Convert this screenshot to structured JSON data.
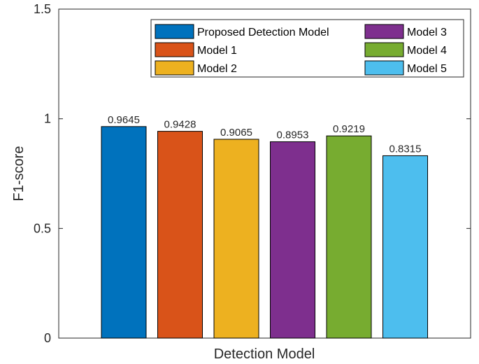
{
  "chart_data": {
    "type": "bar",
    "title": "",
    "xlabel": "Detection Model",
    "ylabel": "F1-score",
    "ylim": [
      0,
      1.5
    ],
    "yticks": [
      0,
      0.5,
      1,
      1.5
    ],
    "ytick_labels": [
      "0",
      "0.5",
      "1",
      "1.5"
    ],
    "grid": false,
    "legend_position": "top-right",
    "categories": [
      "Proposed Detection Model",
      "Model 1",
      "Model 2",
      "Model 3",
      "Model 4",
      "Model 5"
    ],
    "values": [
      0.9645,
      0.9428,
      0.9065,
      0.8953,
      0.9219,
      0.8315
    ],
    "value_labels": [
      "0.9645",
      "0.9428",
      "0.9065",
      "0.8953",
      "0.9219",
      "0.8315"
    ],
    "colors": [
      "#0072BD",
      "#D95319",
      "#EDB120",
      "#7E2F8E",
      "#77AC30",
      "#4DBEEE"
    ]
  }
}
